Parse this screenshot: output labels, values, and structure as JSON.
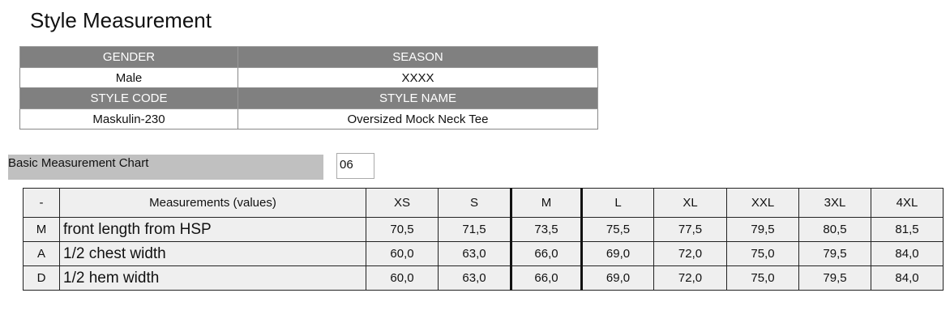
{
  "title": "Style Measurement",
  "info": {
    "gender_label": "GENDER",
    "season_label": "SEASON",
    "gender": "Male",
    "season": "XXXX",
    "style_code_label": "STYLE CODE",
    "style_name_label": "STYLE NAME",
    "style_code": "Maskulin-230",
    "style_name": "Oversized Mock Neck Tee"
  },
  "chart": {
    "label": "Basic Measurement Chart",
    "code": "06"
  },
  "table": {
    "headers": [
      "-",
      "Measurements (values)",
      "XS",
      "S",
      "M",
      "L",
      "XL",
      "XXL",
      "3XL",
      "4XL"
    ],
    "rows": [
      [
        "M",
        "front length from HSP",
        "70,5",
        "71,5",
        "73,5",
        "75,5",
        "77,5",
        "79,5",
        "80,5",
        "81,5"
      ],
      [
        "A",
        "1/2 chest width",
        "60,0",
        "63,0",
        "66,0",
        "69,0",
        "72,0",
        "75,0",
        "79,5",
        "84,0"
      ],
      [
        "D",
        "1/2 hem width",
        "60,0",
        "63,0",
        "66,0",
        "69,0",
        "72,0",
        "75,0",
        "79,5",
        "84,0"
      ]
    ]
  }
}
